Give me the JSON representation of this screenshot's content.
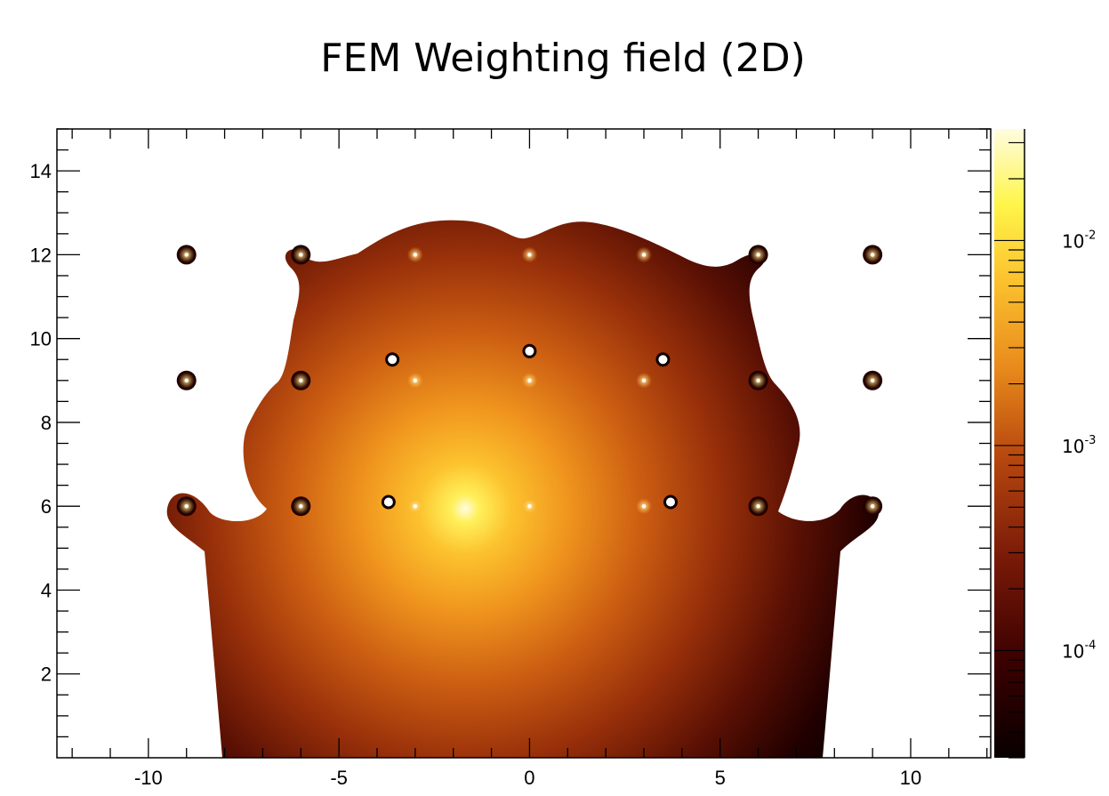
{
  "chart_data": {
    "type": "heatmap",
    "title": "FEM Weighting field (2D)",
    "xlabel": "",
    "ylabel": "",
    "xlim": [
      -12.4,
      12.1
    ],
    "ylim": [
      0,
      15
    ],
    "x_ticks": [
      -10,
      -5,
      0,
      5,
      10
    ],
    "x_tick_labels": [
      "-10",
      "-5",
      "0",
      "5",
      "10"
    ],
    "y_ticks": [
      2,
      4,
      6,
      8,
      10,
      12,
      14
    ],
    "y_tick_labels": [
      "2",
      "4",
      "6",
      "8",
      "10",
      "12",
      "14"
    ],
    "z_scale": "log",
    "z_range": [
      3e-05,
      0.035
    ],
    "colorbar": {
      "ticks": [
        0.01,
        0.001,
        0.0001
      ],
      "labels": [
        {
          "base": "10",
          "exp": "-2"
        },
        {
          "base": "10",
          "exp": "-3"
        },
        {
          "base": "10",
          "exp": "-4"
        }
      ]
    },
    "colormap": [
      "#080000",
      "#3a0000",
      "#7a1a08",
      "#b8480f",
      "#e88a1c",
      "#fcc22e",
      "#fff54a",
      "#fffce0"
    ],
    "source_peak": {
      "x": 0,
      "y": 6,
      "value": 0.035
    },
    "electrode_rows": [
      {
        "y": 6,
        "x": [
          -9,
          -6,
          -3,
          0,
          3,
          6,
          9
        ]
      },
      {
        "y": 9,
        "x": [
          -9,
          -6,
          -3,
          0,
          3,
          6,
          9
        ]
      },
      {
        "y": 12,
        "x": [
          -9,
          -6,
          -3,
          0,
          3,
          6,
          9
        ]
      }
    ],
    "void_points": [
      {
        "x": -3.6,
        "y": 9.5
      },
      {
        "x": 3.5,
        "y": 9.5
      },
      {
        "x": 0,
        "y": 9.7
      },
      {
        "x": -3.7,
        "y": 6.1
      },
      {
        "x": 3.7,
        "y": 6.1
      }
    ],
    "grid": false,
    "legend": "colorbar-right"
  }
}
